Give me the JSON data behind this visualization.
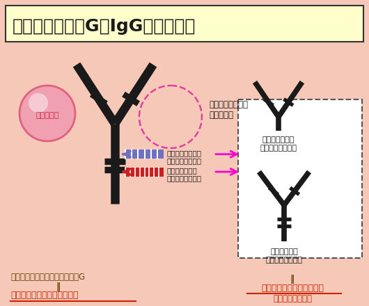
{
  "bg_color": "#f5c8b8",
  "title": "免疫グロブリンG（IgG）の模式図",
  "title_bg": "#ffffcc",
  "antibody_color": "#1a1a1a",
  "pink_circle_color": "#f0a0b0",
  "pink_circle_edge": "#e06080",
  "dashed_circle_color": "#e040a0",
  "arrow_blue": "#7070c0",
  "arrow_red": "#cc2020",
  "arrow_magenta": "#ff00cc",
  "box_bg": "#ffffff",
  "box_edge": "#555555",
  "text_color": "#1a1a1a",
  "text_dark_red": "#8B0000",
  "label_plasmin_arrow": "プラスミン処理で\nここが切断される",
  "label_pepsin_arrow": "ペプシン処理で\nここが切断される",
  "label_dashed": "ここで病原体など\nと結合する",
  "label_pathogen": "病原体など",
  "label_plasmin_box": "プラスミン処理\n人免疫グロブリン",
  "label_pepsin_box": "ペプシン処理\n人免疫グロブリン",
  "label_bottom_left1": "体の中にある人免疫グロブリンG",
  "label_bottom_left2": "‖",
  "label_bottom_left3": "完全分子型人免疫グロブリン",
  "label_bottom_right1": "‖",
  "label_bottom_right2": "酵素処理人免疫グロブリン",
  "label_bottom_right3": "（不完全分子型）"
}
